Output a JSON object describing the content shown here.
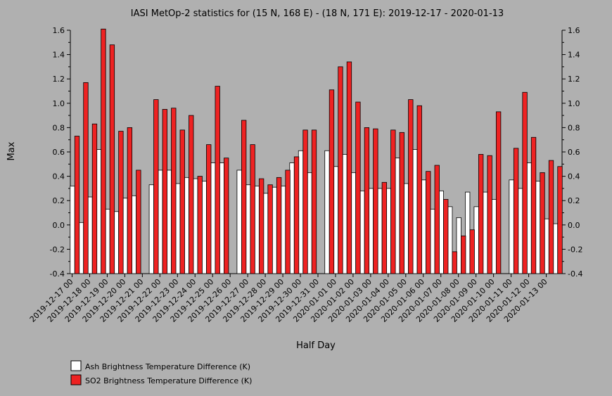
{
  "chart_data": {
    "type": "bar",
    "title": "IASI MetOp-2 statistics for (15 N, 168 E) - (18 N, 171 E): 2019-12-17 - 2020-01-13",
    "xlabel": "Half Day",
    "ylabel": "Max",
    "ylim": [
      -0.4,
      1.6
    ],
    "yticks": [
      "-0.4",
      "-0.2",
      "0.0",
      "0.2",
      "0.4",
      "0.6",
      "0.8",
      "1.0",
      "1.2",
      "1.4",
      "1.6"
    ],
    "grid": false,
    "legend_position": "bottom-left",
    "date_labels": [
      "2019-12-17 00",
      "2019-12-18 00",
      "2019-12-19 00",
      "2019-12-20 00",
      "2019-12-21 00",
      "2019-12-22 00",
      "2019-12-23 00",
      "2019-12-24 00",
      "2019-12-25 00",
      "2019-12-26 00",
      "2019-12-27 00",
      "2019-12-28 00",
      "2019-12-29 00",
      "2019-12-30 00",
      "2019-12-31 00",
      "2020-01-01 00",
      "2020-01-02 00",
      "2020-01-03 00",
      "2020-01-04 00",
      "2020-01-05 00",
      "2020-01-06 00",
      "2020-01-07 00",
      "2020-01-08 00",
      "2020-01-09 00",
      "2020-01-10 00",
      "2020-01-11 00",
      "2020-01-12 00",
      "2020-01-13 00"
    ],
    "series": [
      {
        "name": "Ash Brightness Temperature Difference (K)",
        "color": "#ffffff",
        "values": [
          0.32,
          0.02,
          0.23,
          0.62,
          0.13,
          0.11,
          0.22,
          0.24,
          null,
          0.33,
          0.45,
          0.45,
          0.34,
          0.39,
          0.38,
          0.36,
          0.51,
          0.51,
          null,
          0.45,
          0.33,
          0.32,
          0.26,
          0.31,
          0.32,
          0.51,
          0.61,
          0.43,
          null,
          0.61,
          0.48,
          0.58,
          0.43,
          0.28,
          0.3,
          0.3,
          0.3,
          0.55,
          0.34,
          0.62,
          0.37,
          0.13,
          0.28,
          0.15,
          0.06,
          0.27,
          0.15,
          0.27,
          0.21,
          null,
          0.37,
          0.3,
          0.51,
          0.36,
          0.05,
          0.01
        ]
      },
      {
        "name": "SO2 Brightness Temperature Difference (K)",
        "color": "#ee2222",
        "values": [
          0.73,
          1.17,
          0.83,
          1.61,
          1.48,
          0.77,
          0.8,
          0.45,
          null,
          1.03,
          0.95,
          0.96,
          0.78,
          0.9,
          0.4,
          0.66,
          1.14,
          0.55,
          null,
          0.86,
          0.66,
          0.38,
          0.33,
          0.39,
          0.45,
          0.56,
          0.78,
          0.78,
          null,
          1.11,
          1.3,
          1.34,
          1.01,
          0.8,
          0.79,
          0.35,
          0.78,
          0.76,
          1.03,
          0.98,
          0.44,
          0.49,
          0.21,
          -0.22,
          -0.09,
          -0.04,
          0.58,
          0.57,
          0.93,
          null,
          0.63,
          1.09,
          0.72,
          0.43,
          0.53,
          0.48
        ]
      }
    ]
  }
}
